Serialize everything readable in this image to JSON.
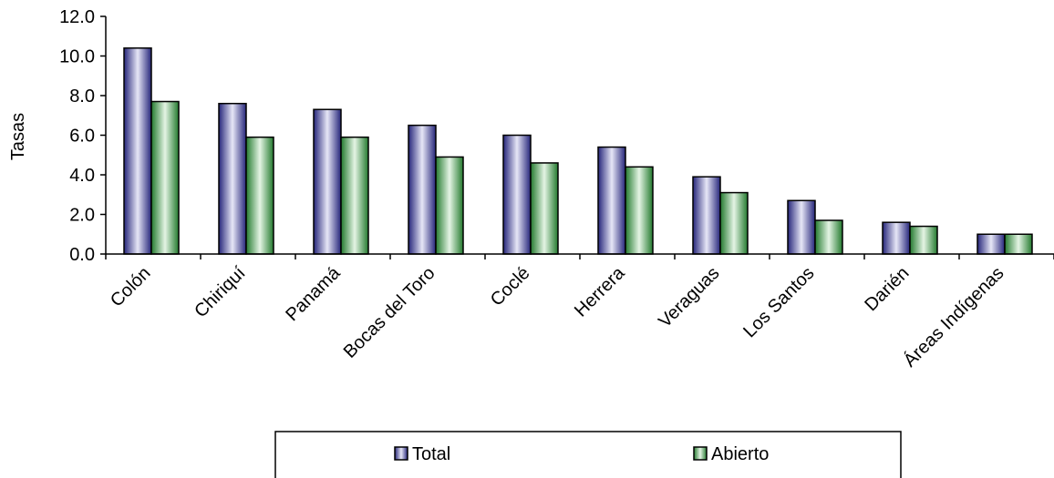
{
  "chart_data": {
    "type": "bar",
    "title": "",
    "xlabel": "",
    "ylabel": "Tasas",
    "ylim": [
      0,
      12
    ],
    "yticks": [
      "0.0",
      "2.0",
      "4.0",
      "6.0",
      "8.0",
      "10.0",
      "12.0"
    ],
    "grid": false,
    "legend_position": "bottom",
    "categories": [
      "Colón",
      "Chiriquí",
      "Panamá",
      "Bocas del Toro",
      "Coclé",
      "Herrera",
      "Veraguas",
      "Los Santos",
      "Darién",
      "Áreas Indígenas"
    ],
    "series": [
      {
        "name": "Total",
        "color": "#2b2b8c",
        "values": [
          10.4,
          7.6,
          7.3,
          6.5,
          6.0,
          5.4,
          3.9,
          2.7,
          1.6,
          1.0
        ]
      },
      {
        "name": "Abierto",
        "color": "#2e8b3a",
        "values": [
          7.7,
          5.9,
          5.9,
          4.9,
          4.6,
          4.4,
          3.1,
          1.7,
          1.4,
          1.0
        ]
      }
    ]
  }
}
